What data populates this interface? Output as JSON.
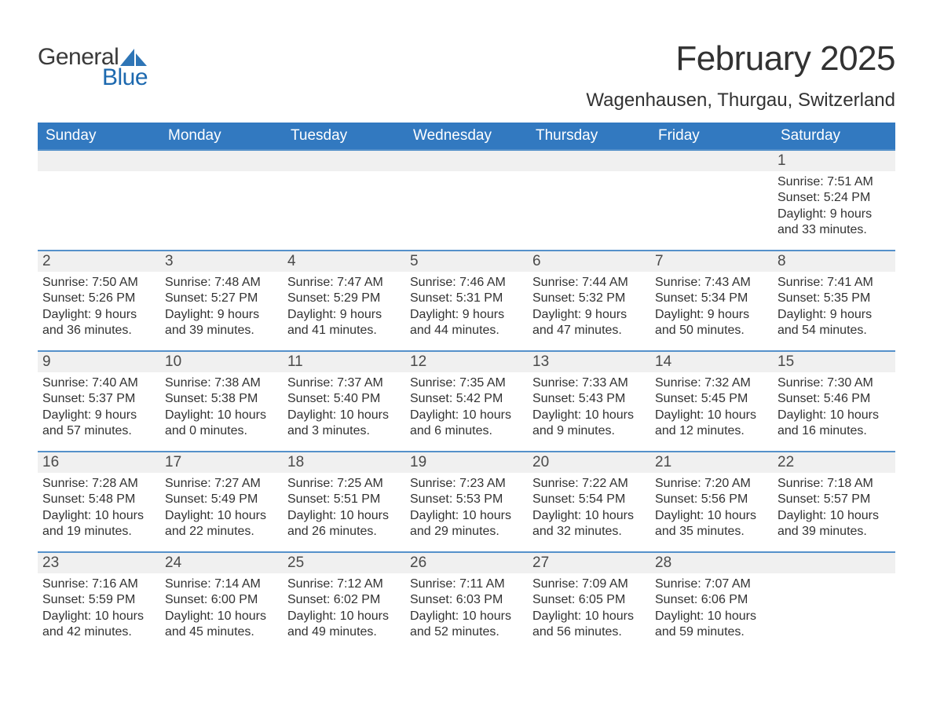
{
  "brand": {
    "word1": "General",
    "word2": "Blue",
    "accent_color": "#2e75b6",
    "text_color": "#3a3a3a"
  },
  "header": {
    "title": "February 2025",
    "location": "Wagenhausen, Thurgau, Switzerland"
  },
  "colors": {
    "header_bg": "#3279c0",
    "header_text": "#ffffff",
    "row_border_top": "#5591ca",
    "daynum_bg": "#f0f0f0",
    "body_bg": "#ffffff",
    "text": "#323232"
  },
  "weekdays": [
    "Sunday",
    "Monday",
    "Tuesday",
    "Wednesday",
    "Thursday",
    "Friday",
    "Saturday"
  ],
  "layout": {
    "leading_blanks": 6,
    "trailing_blanks": 1,
    "rows": 5,
    "cols": 7
  },
  "days": [
    {
      "n": "1",
      "sunrise": "7:51 AM",
      "sunset": "5:24 PM",
      "daylight": "9 hours and 33 minutes."
    },
    {
      "n": "2",
      "sunrise": "7:50 AM",
      "sunset": "5:26 PM",
      "daylight": "9 hours and 36 minutes."
    },
    {
      "n": "3",
      "sunrise": "7:48 AM",
      "sunset": "5:27 PM",
      "daylight": "9 hours and 39 minutes."
    },
    {
      "n": "4",
      "sunrise": "7:47 AM",
      "sunset": "5:29 PM",
      "daylight": "9 hours and 41 minutes."
    },
    {
      "n": "5",
      "sunrise": "7:46 AM",
      "sunset": "5:31 PM",
      "daylight": "9 hours and 44 minutes."
    },
    {
      "n": "6",
      "sunrise": "7:44 AM",
      "sunset": "5:32 PM",
      "daylight": "9 hours and 47 minutes."
    },
    {
      "n": "7",
      "sunrise": "7:43 AM",
      "sunset": "5:34 PM",
      "daylight": "9 hours and 50 minutes."
    },
    {
      "n": "8",
      "sunrise": "7:41 AM",
      "sunset": "5:35 PM",
      "daylight": "9 hours and 54 minutes."
    },
    {
      "n": "9",
      "sunrise": "7:40 AM",
      "sunset": "5:37 PM",
      "daylight": "9 hours and 57 minutes."
    },
    {
      "n": "10",
      "sunrise": "7:38 AM",
      "sunset": "5:38 PM",
      "daylight": "10 hours and 0 minutes."
    },
    {
      "n": "11",
      "sunrise": "7:37 AM",
      "sunset": "5:40 PM",
      "daylight": "10 hours and 3 minutes."
    },
    {
      "n": "12",
      "sunrise": "7:35 AM",
      "sunset": "5:42 PM",
      "daylight": "10 hours and 6 minutes."
    },
    {
      "n": "13",
      "sunrise": "7:33 AM",
      "sunset": "5:43 PM",
      "daylight": "10 hours and 9 minutes."
    },
    {
      "n": "14",
      "sunrise": "7:32 AM",
      "sunset": "5:45 PM",
      "daylight": "10 hours and 12 minutes."
    },
    {
      "n": "15",
      "sunrise": "7:30 AM",
      "sunset": "5:46 PM",
      "daylight": "10 hours and 16 minutes."
    },
    {
      "n": "16",
      "sunrise": "7:28 AM",
      "sunset": "5:48 PM",
      "daylight": "10 hours and 19 minutes."
    },
    {
      "n": "17",
      "sunrise": "7:27 AM",
      "sunset": "5:49 PM",
      "daylight": "10 hours and 22 minutes."
    },
    {
      "n": "18",
      "sunrise": "7:25 AM",
      "sunset": "5:51 PM",
      "daylight": "10 hours and 26 minutes."
    },
    {
      "n": "19",
      "sunrise": "7:23 AM",
      "sunset": "5:53 PM",
      "daylight": "10 hours and 29 minutes."
    },
    {
      "n": "20",
      "sunrise": "7:22 AM",
      "sunset": "5:54 PM",
      "daylight": "10 hours and 32 minutes."
    },
    {
      "n": "21",
      "sunrise": "7:20 AM",
      "sunset": "5:56 PM",
      "daylight": "10 hours and 35 minutes."
    },
    {
      "n": "22",
      "sunrise": "7:18 AM",
      "sunset": "5:57 PM",
      "daylight": "10 hours and 39 minutes."
    },
    {
      "n": "23",
      "sunrise": "7:16 AM",
      "sunset": "5:59 PM",
      "daylight": "10 hours and 42 minutes."
    },
    {
      "n": "24",
      "sunrise": "7:14 AM",
      "sunset": "6:00 PM",
      "daylight": "10 hours and 45 minutes."
    },
    {
      "n": "25",
      "sunrise": "7:12 AM",
      "sunset": "6:02 PM",
      "daylight": "10 hours and 49 minutes."
    },
    {
      "n": "26",
      "sunrise": "7:11 AM",
      "sunset": "6:03 PM",
      "daylight": "10 hours and 52 minutes."
    },
    {
      "n": "27",
      "sunrise": "7:09 AM",
      "sunset": "6:05 PM",
      "daylight": "10 hours and 56 minutes."
    },
    {
      "n": "28",
      "sunrise": "7:07 AM",
      "sunset": "6:06 PM",
      "daylight": "10 hours and 59 minutes."
    }
  ],
  "labels": {
    "sunrise": "Sunrise:",
    "sunset": "Sunset:",
    "daylight": "Daylight:"
  }
}
